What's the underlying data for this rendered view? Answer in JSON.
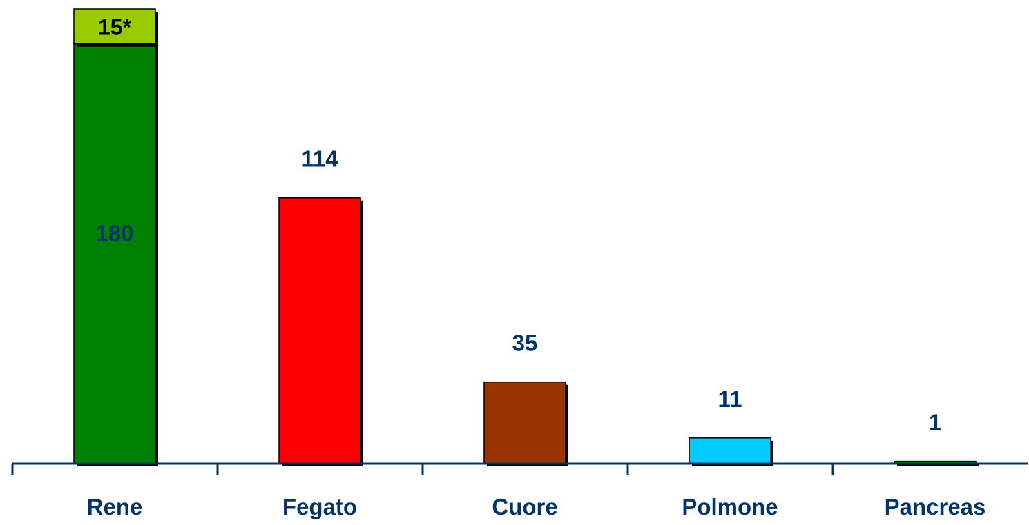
{
  "chart_data": {
    "type": "bar",
    "categories": [
      "Rene",
      "Fegato",
      "Cuore",
      "Polmone",
      "Pancreas"
    ],
    "series": [
      {
        "values": [
          180,
          114,
          35,
          11,
          1
        ],
        "value_labels": [
          "180",
          "114",
          "35",
          "11",
          "1"
        ],
        "colors": [
          "#008000",
          "#ff0000",
          "#993300",
          "#00ccff",
          "#008000"
        ]
      },
      {
        "values": [
          15,
          0,
          0,
          0,
          0
        ],
        "value_labels": [
          "15*",
          "",
          "",
          "",
          ""
        ],
        "colors": [
          "#99cc00",
          "#99cc00",
          "#99cc00",
          "#99cc00",
          "#99cc00"
        ]
      }
    ],
    "stacked": true,
    "ylim": [
      0,
      195
    ],
    "grid": false,
    "legend": "none",
    "title": "",
    "xlabel": "",
    "ylabel": "",
    "label_color": "#003366"
  }
}
